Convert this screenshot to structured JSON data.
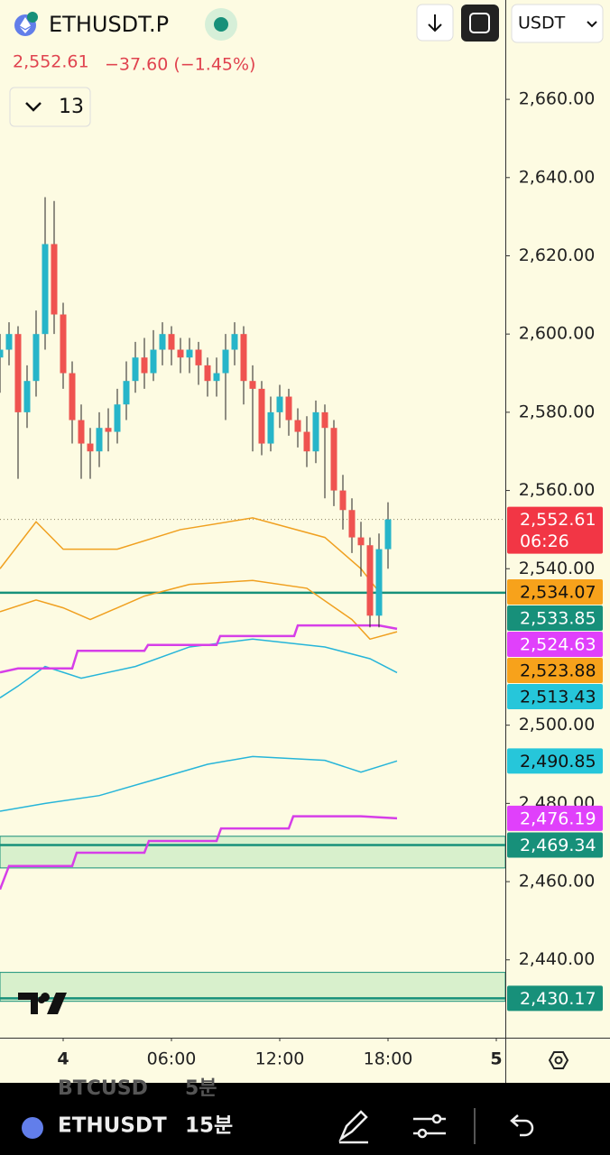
{
  "header": {
    "symbol": "ETHUSDT.P",
    "last": "2,552.61",
    "change": "−37.60 (−1.45%)",
    "indicators_count": "13",
    "currency": "USDT"
  },
  "chart_data": {
    "type": "candlestick",
    "xlim": [
      -3.5,
      24.5
    ],
    "xticks": [
      {
        "value": 0,
        "label": "4"
      },
      {
        "value": 6,
        "label": "06:00"
      },
      {
        "value": 12,
        "label": "12:00"
      },
      {
        "value": 18,
        "label": "18:00"
      },
      {
        "value": 24,
        "label": "5"
      }
    ],
    "ylim": [
      2420.1,
      2685.4
    ],
    "yticks": [
      {
        "value": 2660,
        "label": "2,660.00"
      },
      {
        "value": 2640,
        "label": "2,640.00"
      },
      {
        "value": 2620,
        "label": "2,620.00"
      },
      {
        "value": 2600,
        "label": "2,600.00"
      },
      {
        "value": 2580,
        "label": "2,580.00"
      },
      {
        "value": 2560,
        "label": "2,560.00"
      },
      {
        "value": 2540,
        "label": "2,540.00"
      },
      {
        "value": 2500,
        "label": "2,500.00"
      },
      {
        "value": 2480,
        "label": "2,480.00"
      },
      {
        "value": 2460,
        "label": "2,460.00"
      },
      {
        "value": 2440,
        "label": "2,440.00"
      }
    ],
    "up_color": "#26b5c9",
    "down_color": "#ef5350",
    "x": [
      -3.5,
      -3,
      -2.5,
      -2,
      -1.5,
      -1,
      -0.5,
      0,
      0.5,
      1,
      1.5,
      2,
      2.5,
      3,
      3.5,
      4,
      4.5,
      5,
      5.5,
      6,
      6.5,
      7,
      7.5,
      8,
      8.5,
      9,
      9.5,
      10,
      10.5,
      11,
      11.5,
      12,
      12.5,
      13,
      13.5,
      14,
      14.5,
      15,
      15.5,
      16,
      16.5,
      17,
      17.5,
      18
    ],
    "open": [
      2594,
      2596,
      2600,
      2580,
      2588,
      2600,
      2623,
      2605,
      2590,
      2578,
      2572,
      2570,
      2576,
      2575,
      2582,
      2588,
      2594,
      2590,
      2596,
      2600,
      2596,
      2594,
      2596,
      2592,
      2588,
      2590,
      2596,
      2600,
      2588,
      2586,
      2572,
      2580,
      2584,
      2578,
      2575,
      2570,
      2580,
      2576,
      2560,
      2555,
      2548,
      2546,
      2528,
      2545
    ],
    "high": [
      2600,
      2603,
      2602,
      2592,
      2606,
      2635,
      2634,
      2608,
      2593,
      2582,
      2576,
      2580,
      2581,
      2586,
      2593,
      2598,
      2599,
      2601,
      2603,
      2602,
      2599,
      2599,
      2598,
      2594,
      2594,
      2600,
      2603,
      2602,
      2592,
      2588,
      2584,
      2587,
      2586,
      2581,
      2579,
      2583,
      2582,
      2578,
      2564,
      2558,
      2552,
      2548,
      2549,
      2557
    ],
    "low": [
      2585,
      2592,
      2563,
      2576,
      2584,
      2596,
      2600,
      2586,
      2572,
      2563,
      2563,
      2566,
      2570,
      2572,
      2578,
      2585,
      2586,
      2588,
      2592,
      2592,
      2590,
      2590,
      2587,
      2584,
      2584,
      2578,
      2592,
      2582,
      2570,
      2569,
      2570,
      2576,
      2574,
      2571,
      2566,
      2567,
      2558,
      2556,
      2550,
      2544,
      2538,
      2525,
      2525,
      2540
    ],
    "close": [
      2596,
      2600,
      2580,
      2588,
      2600,
      2623,
      2605,
      2590,
      2578,
      2572,
      2570,
      2576,
      2575,
      2582,
      2588,
      2594,
      2590,
      2596,
      2600,
      2596,
      2594,
      2596,
      2592,
      2588,
      2590,
      2596,
      2600,
      2588,
      2586,
      2572,
      2580,
      2584,
      2578,
      2575,
      2570,
      2580,
      2576,
      2560,
      2555,
      2548,
      2546,
      2528,
      2545,
      2552.61
    ],
    "lines": [
      {
        "color": "#f0a020",
        "x": [
          -3.5,
          -1.5,
          0,
          3,
          6.5,
          10.5,
          14.5,
          16.5,
          17.5
        ],
        "values": [
          2540,
          2552,
          2545,
          2545,
          2550,
          2553,
          2548,
          2540,
          2534.07
        ]
      },
      {
        "color": "#f0a020",
        "x": [
          -3.5,
          -1.5,
          0,
          1.5,
          4.5,
          7,
          10.5,
          13.5,
          16,
          17,
          18.5
        ],
        "values": [
          2529,
          2532,
          2530,
          2527,
          2533,
          2536,
          2537,
          2535,
          2527,
          2522,
          2523.88
        ]
      },
      {
        "color": "#26b5d9",
        "x": [
          -3.5,
          -2.5,
          -1,
          1,
          4,
          7,
          10.5,
          14.5,
          17,
          18.5
        ],
        "values": [
          2507,
          2510,
          2515,
          2512,
          2515,
          2520,
          2522,
          2520,
          2517,
          2513.43
        ]
      },
      {
        "color": "#26b5d9",
        "x": [
          -3.5,
          -1,
          2,
          5,
          8,
          10.5,
          14.5,
          16.5,
          18.5
        ],
        "values": [
          2478,
          2480,
          2482,
          2486,
          2490,
          2492,
          2491,
          2488,
          2490.85
        ]
      },
      {
        "color": "#d63ee8",
        "x": [
          -3.5,
          -2.5,
          0.5,
          0.8,
          4.5,
          4.7,
          8.5,
          8.7,
          12.8,
          13,
          17.5,
          18.5
        ],
        "values": [
          2513.5,
          2514.5,
          2514.5,
          2519,
          2519,
          2520.5,
          2520.5,
          2522.8,
          2522.8,
          2525.5,
          2525.5,
          2524.63
        ]
      },
      {
        "color": "#d63ee8",
        "x": [
          -3.5,
          -3,
          0.5,
          0.75,
          4.5,
          4.75,
          8.5,
          8.75,
          12.5,
          12.75,
          16.5,
          18.5
        ],
        "values": [
          2458,
          2464,
          2464,
          2467.4,
          2467.4,
          2470.4,
          2470.4,
          2473.6,
          2473.6,
          2476.7,
          2476.7,
          2476.19
        ]
      }
    ],
    "zones": [
      {
        "from": 2463.5,
        "to": 2471.6,
        "color": "#d8f0cc"
      },
      {
        "from": 2429.4,
        "to": 2436.8,
        "color": "#d8f0cc"
      }
    ],
    "price_labels": [
      {
        "value": 2552.61,
        "label": "2,552.61",
        "color": "#f23645",
        "text_color": "#ffffff",
        "dotted": true
      },
      {
        "value": 2534.07,
        "label": "2,534.07",
        "color": "#f7a21b",
        "text_color": "#111111"
      },
      {
        "value": 2533.85,
        "label": "2,533.85",
        "color": "#17907a",
        "text_color": "#ffffff",
        "line": true
      },
      {
        "value": 2524.63,
        "label": "2,524.63",
        "color": "#e040fb",
        "text_color": "#ffffff"
      },
      {
        "value": 2523.88,
        "label": "2,523.88",
        "color": "#f7a21b",
        "text_color": "#111111"
      },
      {
        "value": 2513.43,
        "label": "2,513.43",
        "color": "#26c6da",
        "text_color": "#111111"
      },
      {
        "value": 2490.85,
        "label": "2,490.85",
        "color": "#26c6da",
        "text_color": "#111111"
      },
      {
        "value": 2476.19,
        "label": "2,476.19",
        "color": "#e040fb",
        "text_color": "#ffffff"
      },
      {
        "value": 2469.34,
        "label": "2,469.34",
        "color": "#17907a",
        "text_color": "#ffffff",
        "line": true
      },
      {
        "value": 2430.17,
        "label": "2,430.17",
        "color": "#17907a",
        "text_color": "#ffffff",
        "line": true
      }
    ],
    "countdown": "06:26"
  },
  "footer": {
    "symbol": "ETHUSDT",
    "interval": "15분",
    "prev_symbol": "BTCUSD",
    "prev_interval": "5분"
  }
}
